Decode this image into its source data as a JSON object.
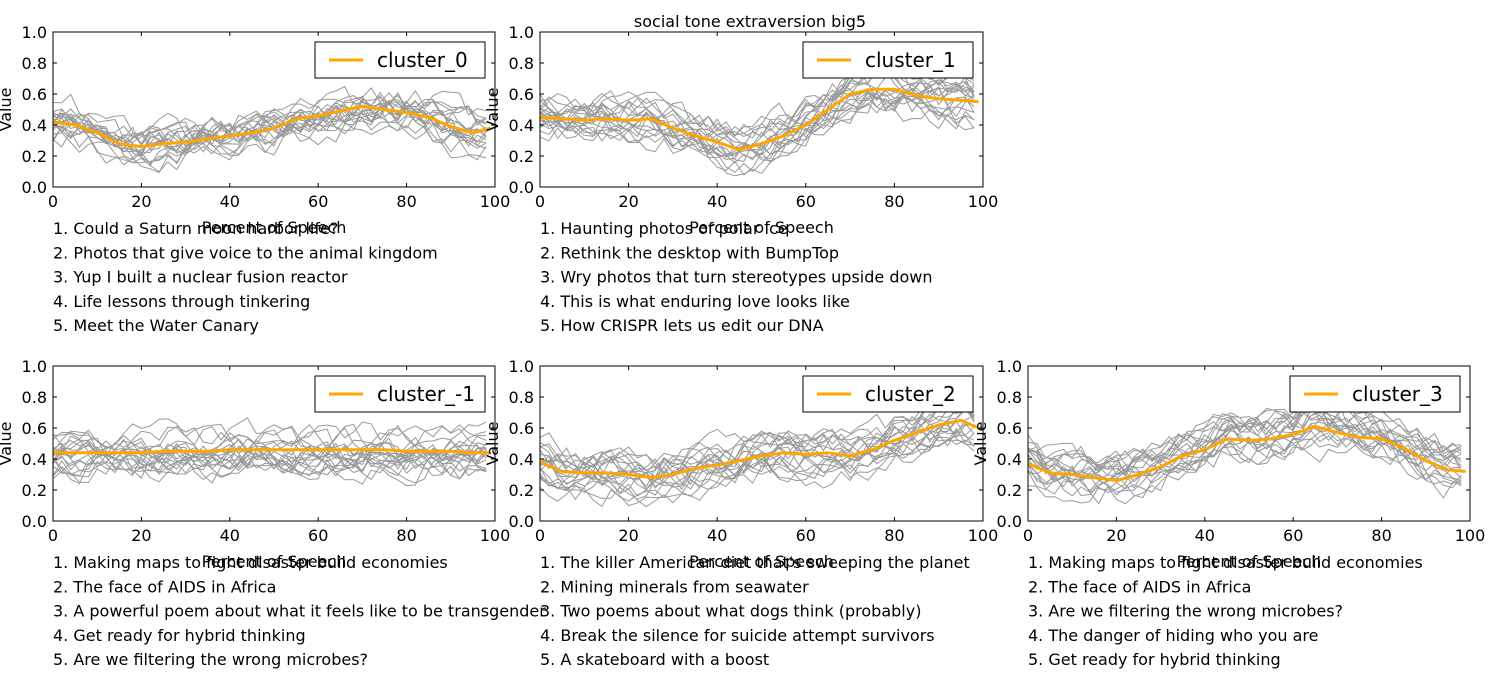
{
  "title": "social tone extraversion big5",
  "bg_line_color": "#999999",
  "mean_line_color": "#ffa500",
  "chart_data": [
    {
      "type": "line",
      "legend": "cluster_0",
      "xlabel": "Percent of Speech",
      "ylabel": "Value",
      "xlim": [
        0,
        100
      ],
      "ylim": [
        0,
        1
      ],
      "xticks": [
        "0",
        "20",
        "40",
        "60",
        "80",
        "100"
      ],
      "yticks": [
        "0.0",
        "0.2",
        "0.4",
        "0.6",
        "0.8",
        "1.0"
      ],
      "legend_position": "top-right",
      "mean": {
        "x": [
          0,
          5,
          10,
          15,
          20,
          25,
          30,
          35,
          40,
          45,
          50,
          55,
          60,
          65,
          70,
          75,
          80,
          85,
          90,
          95,
          99
        ],
        "y": [
          0.42,
          0.4,
          0.35,
          0.28,
          0.26,
          0.28,
          0.29,
          0.31,
          0.33,
          0.35,
          0.38,
          0.44,
          0.46,
          0.49,
          0.52,
          0.5,
          0.48,
          0.45,
          0.39,
          0.35,
          0.38
        ]
      },
      "talks": [
        "1. Could a Saturn moon harbor life?",
        "2. Photos that give voice to the animal kingdom",
        "3. Yup  I built a nuclear fusion reactor",
        "4. Life lessons through tinkering",
        "5. Meet the Water Canary"
      ]
    },
    {
      "type": "line",
      "legend": "cluster_1",
      "xlabel": "Percent of Speech",
      "ylabel": "Value",
      "xlim": [
        0,
        100
      ],
      "ylim": [
        0,
        1
      ],
      "xticks": [
        "0",
        "20",
        "40",
        "60",
        "80",
        "100"
      ],
      "yticks": [
        "0.0",
        "0.2",
        "0.4",
        "0.6",
        "0.8",
        "1.0"
      ],
      "legend_position": "top-right",
      "mean": {
        "x": [
          0,
          5,
          10,
          15,
          20,
          25,
          30,
          35,
          40,
          45,
          50,
          55,
          60,
          65,
          70,
          75,
          80,
          85,
          90,
          95,
          99
        ],
        "y": [
          0.45,
          0.44,
          0.43,
          0.44,
          0.43,
          0.44,
          0.38,
          0.33,
          0.29,
          0.24,
          0.28,
          0.33,
          0.4,
          0.5,
          0.6,
          0.63,
          0.63,
          0.59,
          0.57,
          0.56,
          0.55
        ]
      },
      "talks": [
        "1. Haunting photos of polar ice",
        "2. Rethink the desktop with BumpTop",
        "3. Wry photos that turn stereotypes upside down",
        "4. This is what enduring love looks like",
        "5. How CRISPR lets us edit our DNA"
      ]
    },
    {
      "type": "line",
      "legend": "cluster_-1",
      "xlabel": "Percent of Speech",
      "ylabel": "Value",
      "xlim": [
        0,
        100
      ],
      "ylim": [
        0,
        1
      ],
      "xticks": [
        "0",
        "20",
        "40",
        "60",
        "80",
        "100"
      ],
      "yticks": [
        "0.0",
        "0.2",
        "0.4",
        "0.6",
        "0.8",
        "1.0"
      ],
      "legend_position": "top-right",
      "mean": {
        "x": [
          0,
          5,
          10,
          15,
          20,
          25,
          30,
          35,
          40,
          45,
          50,
          55,
          60,
          65,
          70,
          75,
          80,
          85,
          90,
          95,
          99
        ],
        "y": [
          0.44,
          0.44,
          0.44,
          0.44,
          0.44,
          0.45,
          0.45,
          0.45,
          0.46,
          0.46,
          0.46,
          0.46,
          0.46,
          0.46,
          0.46,
          0.46,
          0.45,
          0.45,
          0.45,
          0.44,
          0.44
        ]
      },
      "talks": [
        "1. Making maps to fight disaster  build economies",
        "2. The face of AIDS in Africa",
        "3. A powerful poem about what it feels like to be transgender",
        "4. Get ready for hybrid thinking",
        "5. Are we filtering the wrong microbes?"
      ]
    },
    {
      "type": "line",
      "legend": "cluster_2",
      "xlabel": "Percent of Speech",
      "ylabel": "Value",
      "xlim": [
        0,
        100
      ],
      "ylim": [
        0,
        1
      ],
      "xticks": [
        "0",
        "20",
        "40",
        "60",
        "80",
        "100"
      ],
      "yticks": [
        "0.0",
        "0.2",
        "0.4",
        "0.6",
        "0.8",
        "1.0"
      ],
      "legend_position": "top-right",
      "mean": {
        "x": [
          0,
          5,
          10,
          15,
          20,
          25,
          30,
          35,
          40,
          45,
          50,
          55,
          60,
          65,
          70,
          75,
          80,
          85,
          90,
          95,
          99
        ],
        "y": [
          0.38,
          0.32,
          0.31,
          0.31,
          0.3,
          0.28,
          0.3,
          0.34,
          0.36,
          0.39,
          0.42,
          0.44,
          0.43,
          0.44,
          0.42,
          0.46,
          0.52,
          0.57,
          0.62,
          0.65,
          0.6
        ]
      },
      "talks": [
        "1. The killer American diet that's sweeping the planet",
        "2. Mining minerals from seawater",
        "3. Two poems about what dogs think (probably)",
        "4. Break the silence for suicide attempt survivors",
        "5. A skateboard  with a boost"
      ]
    },
    {
      "type": "line",
      "legend": "cluster_3",
      "xlabel": "Percent of Speech",
      "ylabel": "Value",
      "xlim": [
        0,
        100
      ],
      "ylim": [
        0,
        1
      ],
      "xticks": [
        "0",
        "20",
        "40",
        "60",
        "80",
        "100"
      ],
      "yticks": [
        "0.0",
        "0.2",
        "0.4",
        "0.6",
        "0.8",
        "1.0"
      ],
      "legend_position": "top-right",
      "mean": {
        "x": [
          0,
          5,
          10,
          15,
          20,
          25,
          30,
          35,
          40,
          45,
          50,
          55,
          60,
          65,
          70,
          75,
          80,
          85,
          90,
          95,
          99
        ],
        "y": [
          0.37,
          0.31,
          0.3,
          0.28,
          0.26,
          0.3,
          0.35,
          0.42,
          0.46,
          0.53,
          0.52,
          0.53,
          0.56,
          0.61,
          0.57,
          0.54,
          0.53,
          0.47,
          0.39,
          0.33,
          0.32
        ]
      },
      "talks": [
        "1. Making maps to fight disaster  build economies",
        "2. The face of AIDS in Africa",
        "3. Are we filtering the wrong microbes?",
        "4. The danger of hiding who you are",
        "5. Get ready for hybrid thinking"
      ]
    }
  ]
}
